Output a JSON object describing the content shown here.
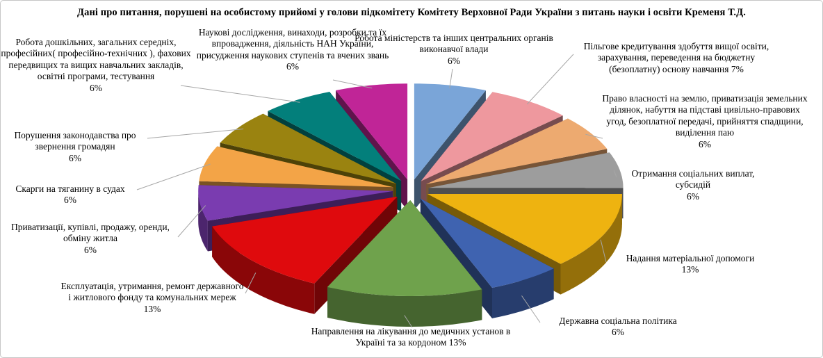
{
  "chart_data": {
    "type": "pie",
    "style": "3d-exploded",
    "title": "Дані про питання, порушені на особистому прийомі у голови підкомітету Комітету Верховної Ради України з питань науки і освіти Кременя Т.Д.",
    "unit": "%",
    "legend_position": "none",
    "labels": [
      "Робота міністерств та інших центральних  органів виконавчої влади",
      "Пільгове кредитування здобуття вищої освіти, зарахування,  переведення на бюджетну (безоплатну) основу навчання",
      "Право власності на землю, приватизація земельних ділянок, набуття на підставі  цивільно-правових угод, безоплатної передачі, прийняття спадщини, виділення паю",
      "Отримання соціальних  виплат, субсидій",
      "Надання матеріальної допомоги",
      "Державна соціальна  політика",
      "Направлення на лікування  до медичних  установ в Україні та за кордоном",
      "Експлуатація,  утримання, ремонт державного і житлового  фонду та комунальних мереж",
      "Приватизації,  купівлі,  продажу,  оренди, обміну житла",
      "Скарги на тяганину в судах",
      "Порушення законодавства про звернення громадян",
      "Робота дошкільних,  загальних середніх, професійних( професійно-технічних  ), фахових передвищих  та вищих навчальних закладів,  освітні програми, тестування",
      "Наукові дослідження,  винаходи, розробки та їх впровадження, діяльність  НАН України, присудження наукових ступенів та вчених звань"
    ],
    "values": [
      6,
      7,
      6,
      6,
      13,
      6,
      13,
      13,
      6,
      6,
      6,
      6,
      6
    ],
    "pct_labels": [
      "6%",
      "7%",
      "6%",
      "6%",
      "13%",
      "6%",
      "13%",
      "13%",
      "6%",
      "6%",
      "6%",
      "6%",
      "6%"
    ],
    "pct_inline": [
      false,
      true,
      false,
      false,
      false,
      false,
      true,
      false,
      false,
      false,
      false,
      false,
      false
    ],
    "colors": [
      "#7aa5d8",
      "#ee989e",
      "#edaa70",
      "#9d9d9d",
      "#eeb310",
      "#3f63b0",
      "#6fa24c",
      "#df0a0d",
      "#7a3cb0",
      "#f3a447",
      "#9a8310",
      "#037f7b",
      "#c02597"
    ],
    "leader_line_color": "#a6a6a6",
    "background_color": "#ffffff"
  }
}
